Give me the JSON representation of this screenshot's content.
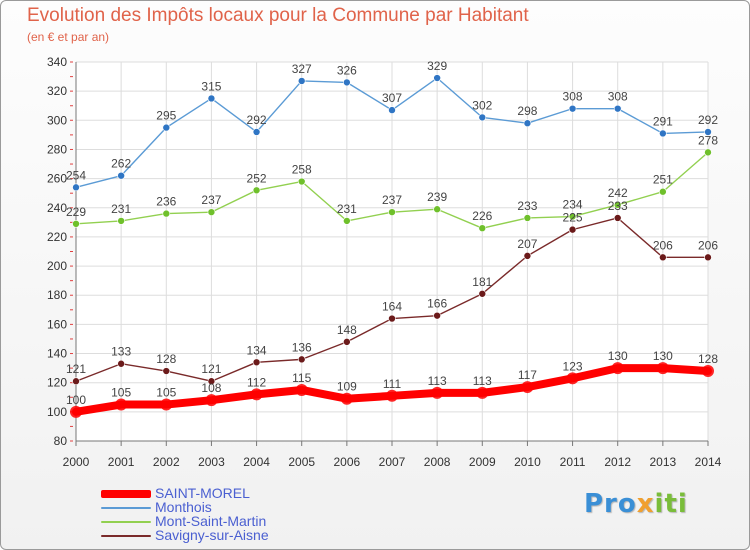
{
  "header": {
    "title": "Evolution des Impôts locaux pour la Commune par Habitant",
    "subtitle": "(en € et par an)"
  },
  "colors": {
    "title": "#e0634a",
    "legend_text": "#4a5fd1",
    "grid": "#dddddd"
  },
  "logo": {
    "part1": "Pro",
    "part2": "x",
    "part3": "iti",
    "colors": [
      "#3a8fd6",
      "#f0a030",
      "#7abd3a"
    ]
  },
  "chart_data": {
    "type": "line",
    "title": "Evolution des Impôts locaux pour la Commune par Habitant",
    "subtitle": "(en € et par an)",
    "x": [
      2000,
      2001,
      2002,
      2003,
      2004,
      2005,
      2006,
      2007,
      2008,
      2009,
      2010,
      2011,
      2012,
      2013,
      2014
    ],
    "ylim": [
      80,
      340
    ],
    "yticks": [
      80,
      100,
      120,
      140,
      160,
      180,
      200,
      220,
      240,
      260,
      280,
      300,
      320,
      340
    ],
    "grid": true,
    "legend": "bottom-left",
    "series": [
      {
        "name": "SAINT-MOREL",
        "color": "#ff0000",
        "values": [
          100,
          105,
          105,
          108,
          112,
          115,
          109,
          111,
          113,
          113,
          117,
          123,
          130,
          130,
          128
        ]
      },
      {
        "name": "Monthois",
        "color": "#5b9bd5",
        "values": [
          254,
          262,
          295,
          315,
          292,
          327,
          326,
          307,
          329,
          302,
          298,
          308,
          308,
          291,
          292
        ]
      },
      {
        "name": "Mont-Saint-Martin",
        "color": "#92d050",
        "values": [
          229,
          231,
          236,
          237,
          252,
          258,
          231,
          237,
          239,
          226,
          233,
          234,
          242,
          251,
          278
        ]
      },
      {
        "name": "Savigny-sur-Aisne",
        "color": "#7a2a2a",
        "values": [
          121,
          133,
          128,
          121,
          134,
          136,
          148,
          164,
          166,
          181,
          207,
          225,
          233,
          206,
          206
        ]
      }
    ]
  }
}
